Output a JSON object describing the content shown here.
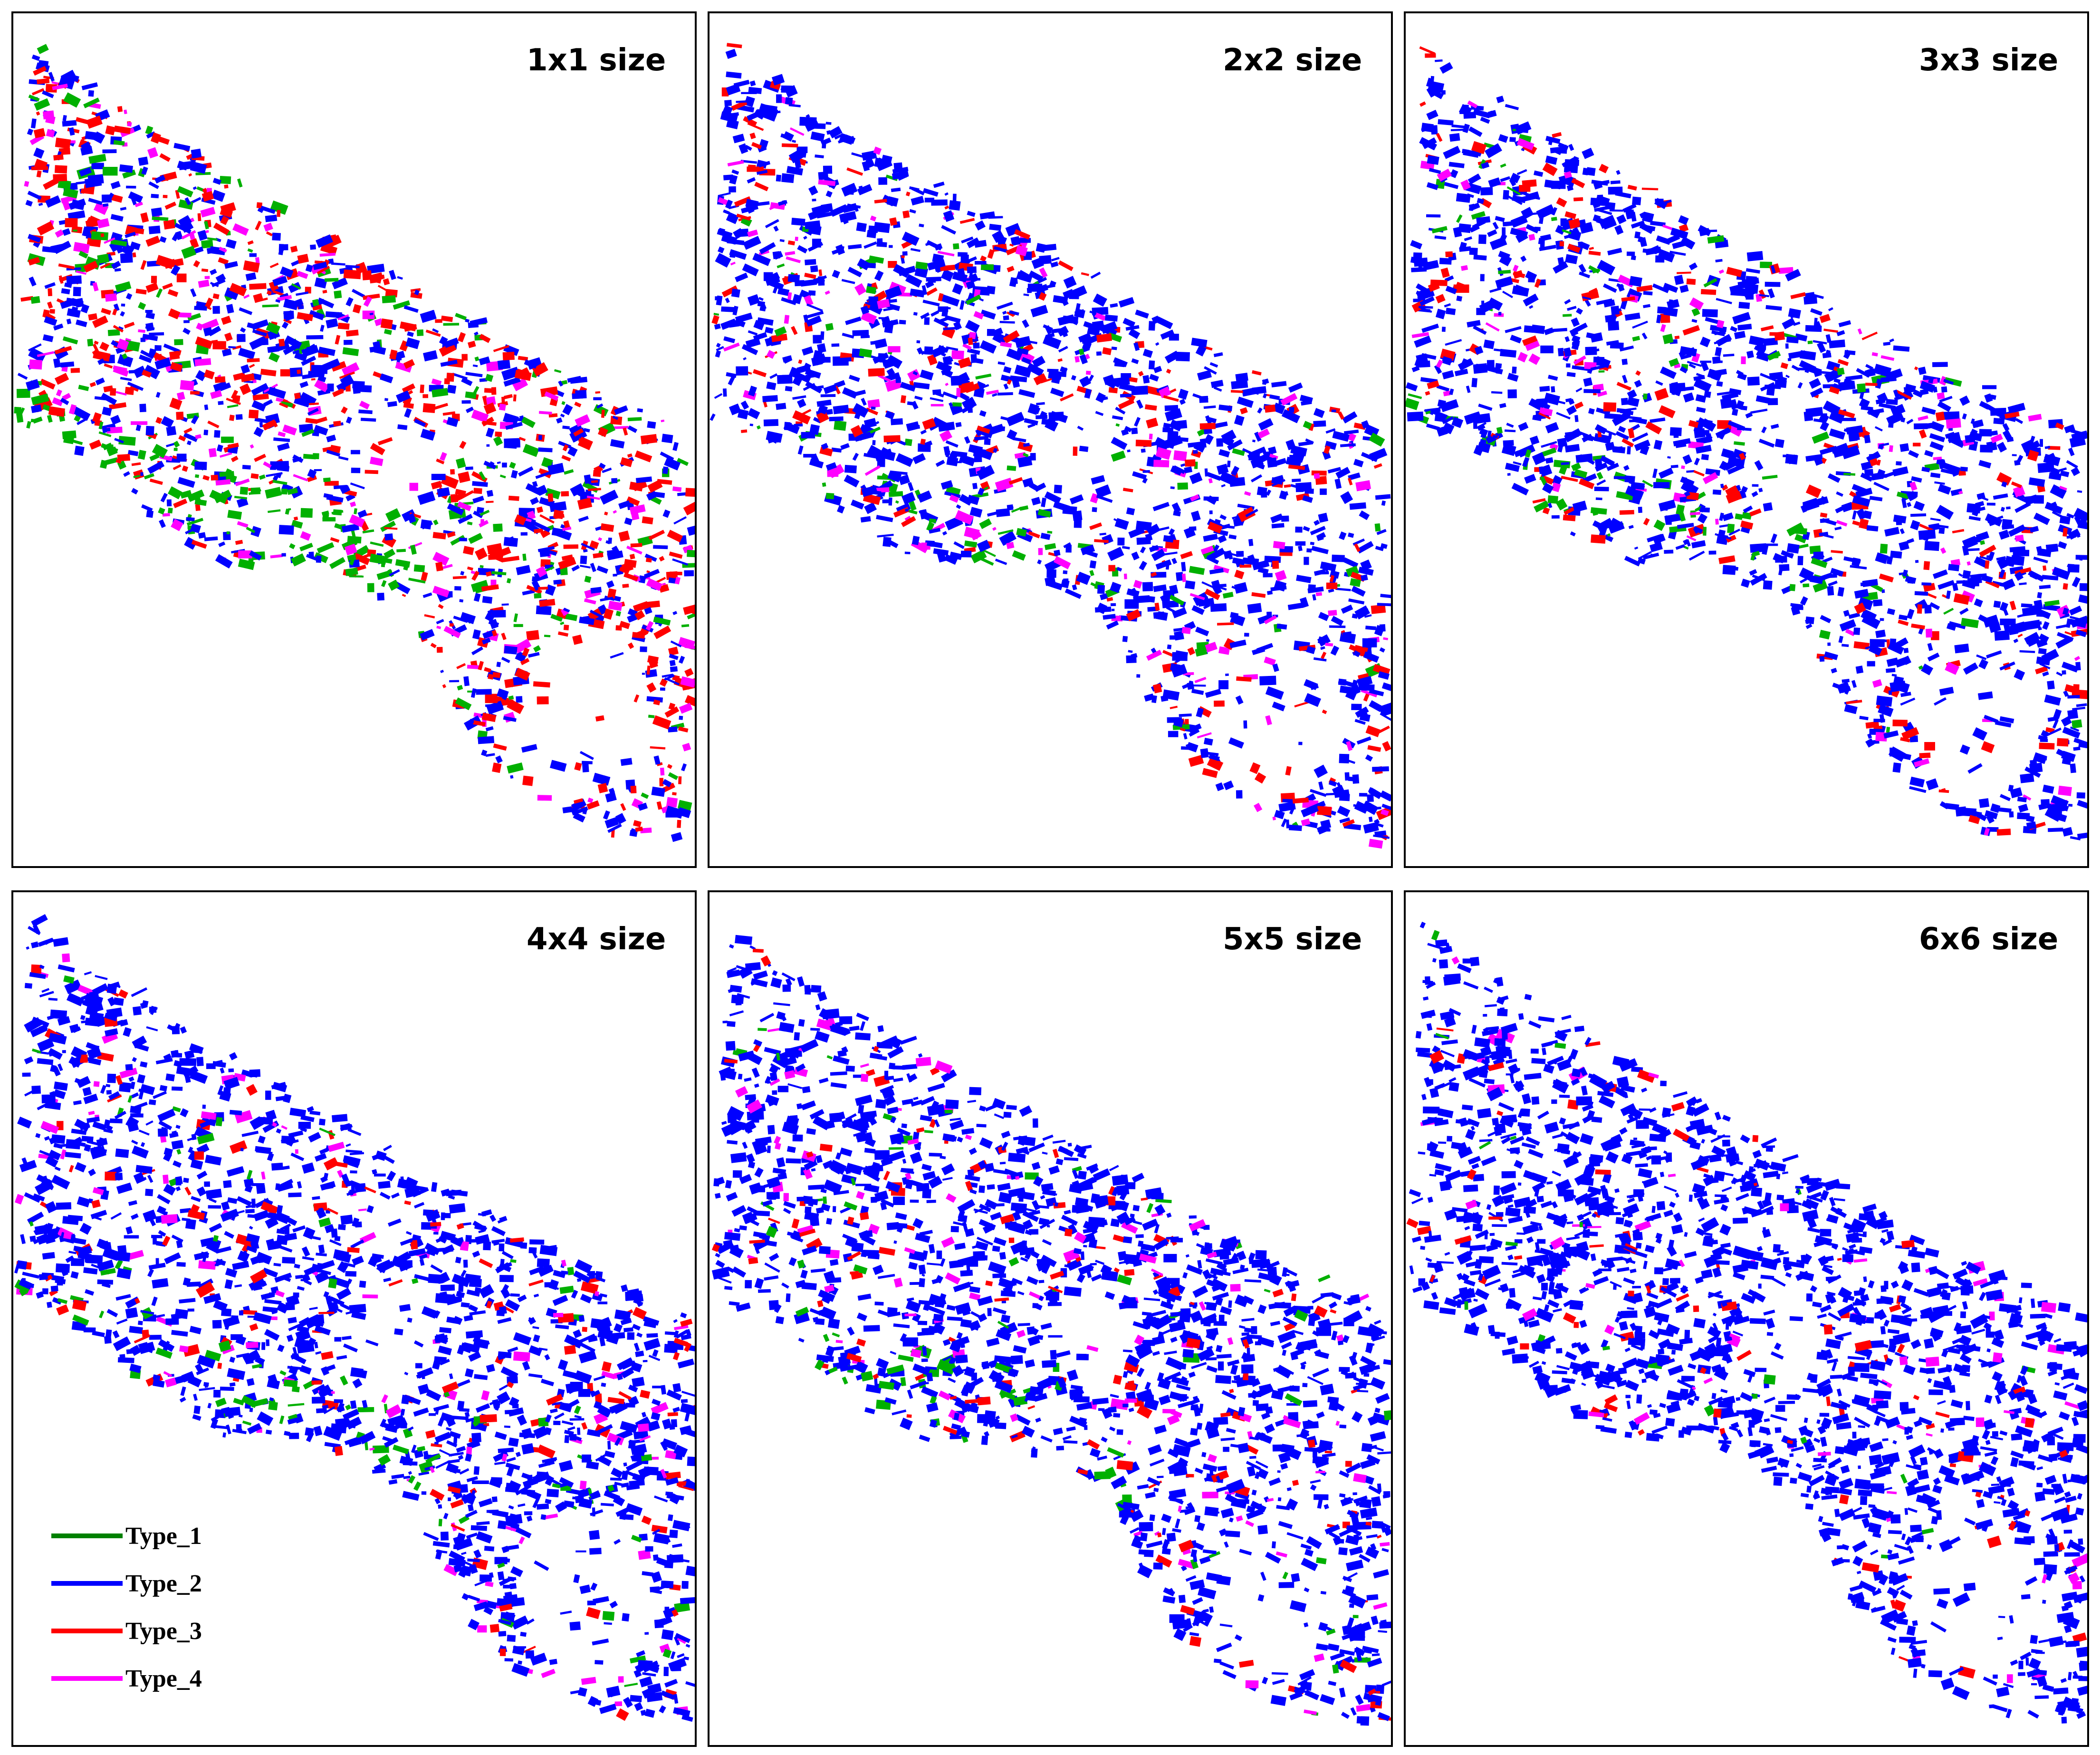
{
  "colors": {
    "Type_1": "#00b000",
    "Type_2": "#0000ff",
    "Type_3": "#ff0000",
    "Type_4": "#ff00ff",
    "background": "#ffffff",
    "frame": "#000000"
  },
  "panels": [
    {
      "title": "1x1 size",
      "mix": {
        "blue": 0.45,
        "red": 0.33,
        "magenta": 0.12,
        "green": 0.1
      }
    },
    {
      "title": "2x2 size",
      "mix": {
        "blue": 0.75,
        "red": 0.13,
        "magenta": 0.08,
        "green": 0.04
      }
    },
    {
      "title": "3x3 size",
      "mix": {
        "blue": 0.78,
        "red": 0.13,
        "magenta": 0.05,
        "green": 0.04
      }
    },
    {
      "title": "4x4 size",
      "mix": {
        "blue": 0.83,
        "red": 0.08,
        "magenta": 0.05,
        "green": 0.04
      }
    },
    {
      "title": "5x5 size",
      "mix": {
        "blue": 0.84,
        "red": 0.07,
        "magenta": 0.06,
        "green": 0.03
      }
    },
    {
      "title": "6x6 size",
      "mix": {
        "blue": 0.91,
        "red": 0.05,
        "magenta": 0.03,
        "green": 0.01
      }
    }
  ],
  "legend": [
    {
      "label": "Type_1",
      "color": "#008000"
    },
    {
      "label": "Type_2",
      "color": "#0000ff"
    },
    {
      "label": "Type_3",
      "color": "#ff0000"
    },
    {
      "label": "Type_4",
      "color": "#ff00ff"
    }
  ]
}
